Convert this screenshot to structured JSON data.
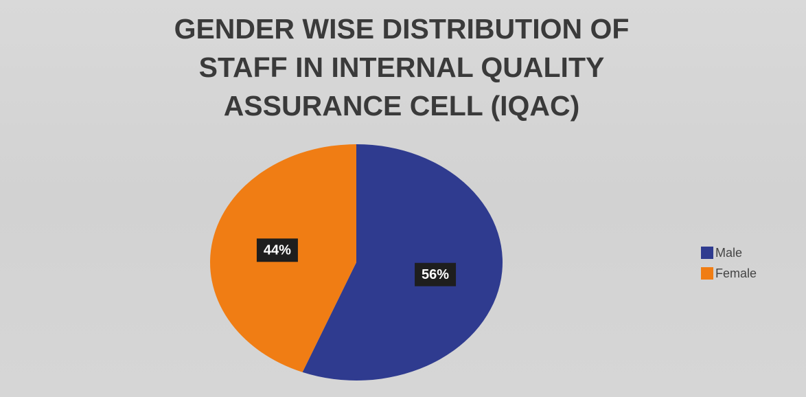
{
  "chart_data": {
    "type": "pie",
    "title": "GENDER WISE DISTRIBUTION OF STAFF IN INTERNAL QUALITY ASSURANCE CELL (IQAC)",
    "categories": [
      "Male",
      "Female"
    ],
    "values": [
      56,
      44
    ],
    "value_labels": [
      "56%",
      "44%"
    ],
    "colors": [
      "#2f3b8f",
      "#f07d14"
    ],
    "legend": "right"
  }
}
